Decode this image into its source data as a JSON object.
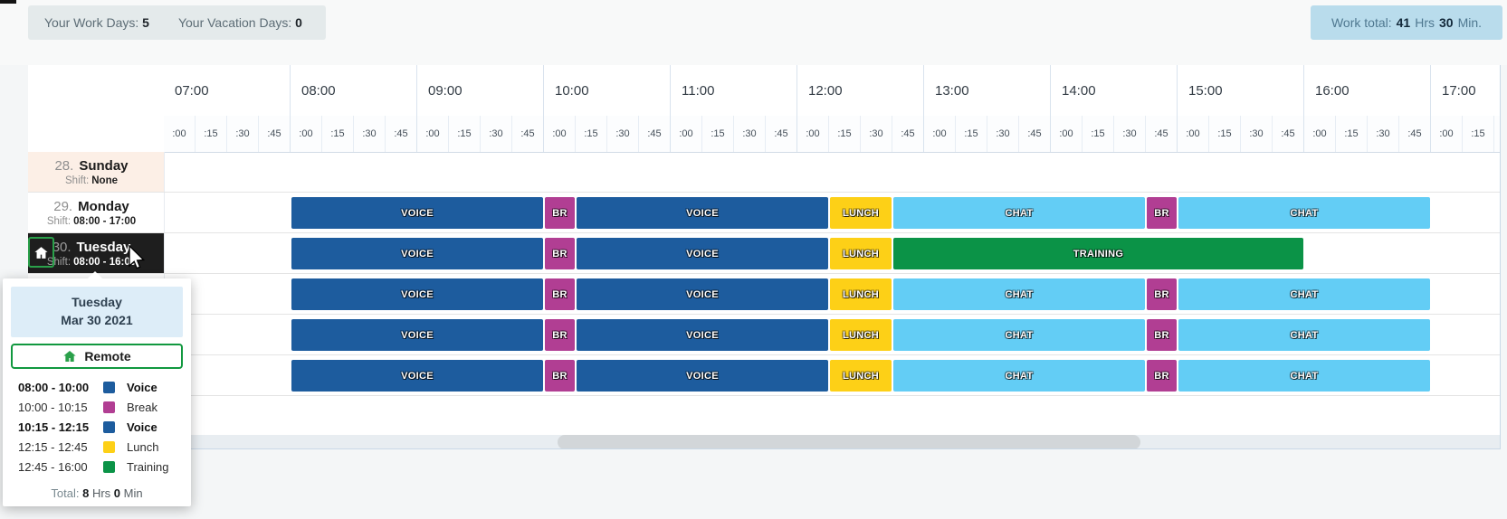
{
  "top_bar": {
    "work_days_label": "Your Work Days:",
    "work_days_value": "5",
    "vacation_days_label": "Your Vacation Days:",
    "vacation_days_value": "0",
    "work_total_label": "Work total:",
    "work_total_hours": "41",
    "work_total_hours_unit": "Hrs",
    "work_total_minutes": "30",
    "work_total_minutes_unit": "Min."
  },
  "timeline": {
    "hours": [
      "07:00",
      "08:00",
      "09:00",
      "10:00",
      "11:00",
      "12:00",
      "13:00",
      "14:00",
      "15:00",
      "16:00",
      "17:00"
    ],
    "quarters": [
      ":00",
      ":15",
      ":30",
      ":45"
    ]
  },
  "colors": {
    "voice": "#1d5c9e",
    "break": "#b13e93",
    "lunch": "#fdd017",
    "chat": "#63cdf5",
    "training": "#0b9347",
    "weekend_row_bg": "#fcefe6",
    "selected_row_bg": "#1e1e1e",
    "remote_green": "#2aa04a"
  },
  "days": [
    {
      "number": "28.",
      "name": "Sunday",
      "shift_label": "Shift:",
      "shift_value": "None",
      "weekend": true,
      "selected": false,
      "remote": false,
      "segments": []
    },
    {
      "number": "29.",
      "name": "Monday",
      "shift_label": "Shift:",
      "shift_value": "08:00 - 17:00",
      "weekend": false,
      "selected": false,
      "remote": false,
      "segments": [
        {
          "label": "VOICE",
          "start": "08:00",
          "end": "10:00",
          "color": "voice"
        },
        {
          "label": "BR",
          "start": "10:00",
          "end": "10:15",
          "color": "break"
        },
        {
          "label": "VOICE",
          "start": "10:15",
          "end": "12:15",
          "color": "voice"
        },
        {
          "label": "LUNCH",
          "start": "12:15",
          "end": "12:45",
          "color": "lunch"
        },
        {
          "label": "CHAT",
          "start": "12:45",
          "end": "14:45",
          "color": "chat"
        },
        {
          "label": "BR",
          "start": "14:45",
          "end": "15:00",
          "color": "break"
        },
        {
          "label": "CHAT",
          "start": "15:00",
          "end": "17:00",
          "color": "chat"
        }
      ]
    },
    {
      "number": "30.",
      "name": "Tuesday",
      "shift_label": "Shift:",
      "shift_value": "08:00 - 16:00",
      "weekend": false,
      "selected": true,
      "remote": true,
      "segments": [
        {
          "label": "VOICE",
          "start": "08:00",
          "end": "10:00",
          "color": "voice"
        },
        {
          "label": "BR",
          "start": "10:00",
          "end": "10:15",
          "color": "break"
        },
        {
          "label": "VOICE",
          "start": "10:15",
          "end": "12:15",
          "color": "voice"
        },
        {
          "label": "LUNCH",
          "start": "12:15",
          "end": "12:45",
          "color": "lunch"
        },
        {
          "label": "TRAINING",
          "start": "12:45",
          "end": "16:00",
          "color": "training"
        }
      ]
    },
    {
      "number": "",
      "name": "",
      "shift_label": "",
      "shift_value": "",
      "weekend": false,
      "selected": false,
      "remote": false,
      "segments": [
        {
          "label": "VOICE",
          "start": "08:00",
          "end": "10:00",
          "color": "voice"
        },
        {
          "label": "BR",
          "start": "10:00",
          "end": "10:15",
          "color": "break"
        },
        {
          "label": "VOICE",
          "start": "10:15",
          "end": "12:15",
          "color": "voice"
        },
        {
          "label": "LUNCH",
          "start": "12:15",
          "end": "12:45",
          "color": "lunch"
        },
        {
          "label": "CHAT",
          "start": "12:45",
          "end": "14:45",
          "color": "chat"
        },
        {
          "label": "BR",
          "start": "14:45",
          "end": "15:00",
          "color": "break"
        },
        {
          "label": "CHAT",
          "start": "15:00",
          "end": "17:00",
          "color": "chat"
        }
      ]
    },
    {
      "number": "",
      "name": "",
      "shift_label": "",
      "shift_value": "",
      "weekend": false,
      "selected": false,
      "remote": false,
      "segments": [
        {
          "label": "VOICE",
          "start": "08:00",
          "end": "10:00",
          "color": "voice"
        },
        {
          "label": "BR",
          "start": "10:00",
          "end": "10:15",
          "color": "break"
        },
        {
          "label": "VOICE",
          "start": "10:15",
          "end": "12:15",
          "color": "voice"
        },
        {
          "label": "LUNCH",
          "start": "12:15",
          "end": "12:45",
          "color": "lunch"
        },
        {
          "label": "CHAT",
          "start": "12:45",
          "end": "14:45",
          "color": "chat"
        },
        {
          "label": "BR",
          "start": "14:45",
          "end": "15:00",
          "color": "break"
        },
        {
          "label": "CHAT",
          "start": "15:00",
          "end": "17:00",
          "color": "chat"
        }
      ]
    },
    {
      "number": "",
      "name": "",
      "shift_label": "",
      "shift_value": "",
      "weekend": false,
      "selected": false,
      "remote": false,
      "segments": [
        {
          "label": "VOICE",
          "start": "08:00",
          "end": "10:00",
          "color": "voice"
        },
        {
          "label": "BR",
          "start": "10:00",
          "end": "10:15",
          "color": "break"
        },
        {
          "label": "VOICE",
          "start": "10:15",
          "end": "12:15",
          "color": "voice"
        },
        {
          "label": "LUNCH",
          "start": "12:15",
          "end": "12:45",
          "color": "lunch"
        },
        {
          "label": "CHAT",
          "start": "12:45",
          "end": "14:45",
          "color": "chat"
        },
        {
          "label": "BR",
          "start": "14:45",
          "end": "15:00",
          "color": "break"
        },
        {
          "label": "CHAT",
          "start": "15:00",
          "end": "17:00",
          "color": "chat"
        }
      ]
    }
  ],
  "popup": {
    "day_name": "Tuesday",
    "date": "Mar 30 2021",
    "remote_label": "Remote",
    "entries": [
      {
        "time": "08:00 - 10:00",
        "label": "Voice",
        "color": "voice",
        "bold": true
      },
      {
        "time": "10:00 - 10:15",
        "label": "Break",
        "color": "break",
        "bold": false
      },
      {
        "time": "10:15 - 12:15",
        "label": "Voice",
        "color": "voice",
        "bold": true
      },
      {
        "time": "12:15 - 12:45",
        "label": "Lunch",
        "color": "lunch",
        "bold": false
      },
      {
        "time": "12:45 - 16:00",
        "label": "Training",
        "color": "training",
        "bold": false
      }
    ],
    "total_label": "Total:",
    "total_hours": "8",
    "total_hours_unit": "Hrs",
    "total_minutes": "0",
    "total_minutes_unit": "Min"
  }
}
